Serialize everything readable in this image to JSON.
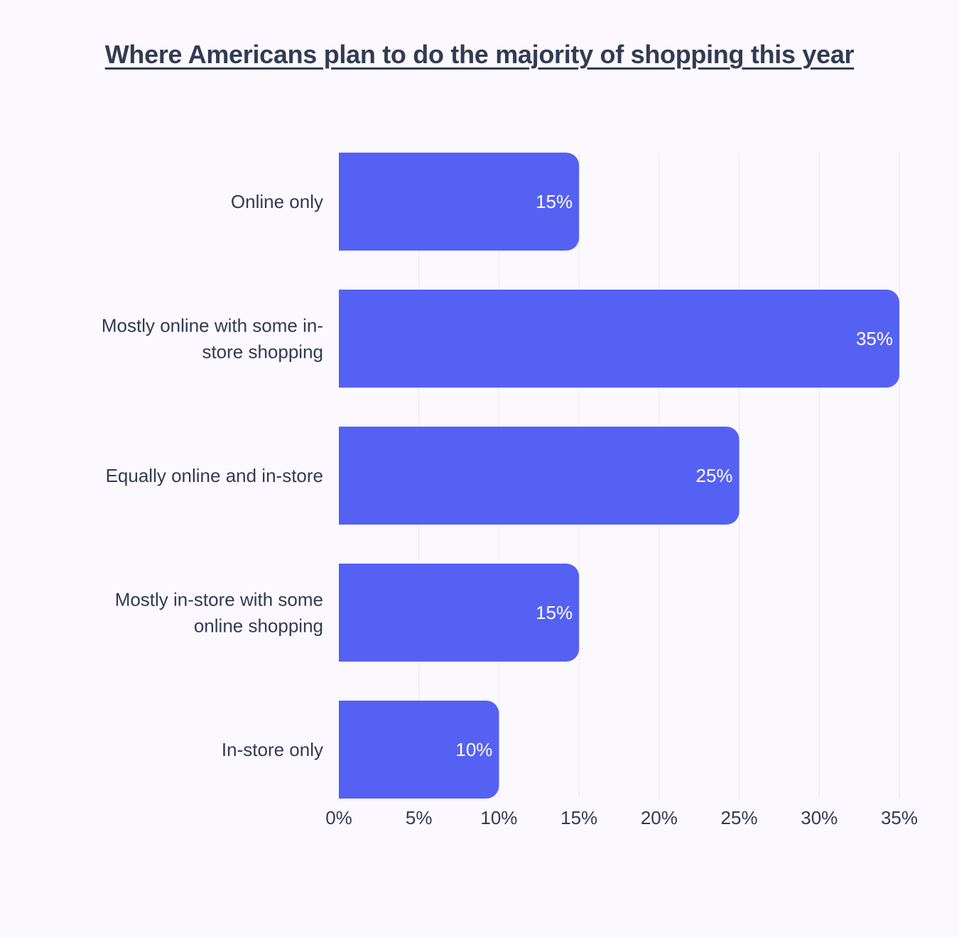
{
  "chart_data": {
    "type": "bar",
    "orientation": "horizontal",
    "title": "Where Americans plan to do the majority of shopping this year",
    "categories": [
      "Online only",
      "Mostly online with some in-store shopping",
      "Equally online and in-store",
      "Mostly in-store with some online shopping",
      "In-store only"
    ],
    "category_lines": [
      [
        "Online only"
      ],
      [
        "Mostly online with some in-",
        "store shopping"
      ],
      [
        "Equally online and in-store"
      ],
      [
        "Mostly in-store with some",
        "online shopping"
      ],
      [
        "In-store only"
      ]
    ],
    "values": [
      15,
      35,
      25,
      15,
      10
    ],
    "value_labels": [
      "15%",
      "35%",
      "25%",
      "15%",
      "10%"
    ],
    "xlim": [
      0,
      35
    ],
    "x_ticks": [
      0,
      5,
      10,
      15,
      20,
      25,
      30,
      35
    ],
    "x_tick_labels": [
      "0%",
      "5%",
      "10%",
      "15%",
      "20%",
      "25%",
      "30%",
      "35%"
    ],
    "xlabel": "",
    "ylabel": "",
    "grid": true,
    "legend": "none",
    "colors": {
      "bar": "#5561f2",
      "background": "#fbf9fe",
      "text": "#323b52",
      "grid": "#e9e7ee",
      "value_label": "#ffffff"
    }
  }
}
